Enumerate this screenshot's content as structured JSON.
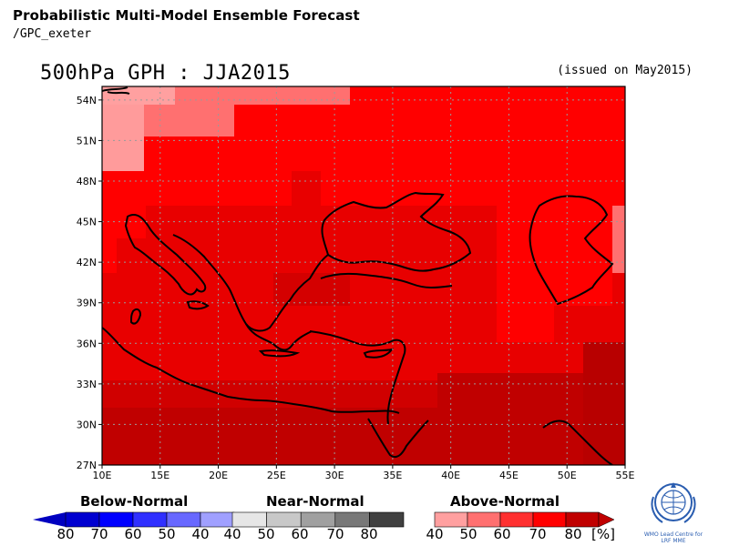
{
  "header": {
    "title": "Probabilistic Multi-Model Ensemble Forecast",
    "subtitle": "/GPC_exeter"
  },
  "map": {
    "title": "500hPa GPH : JJA2015",
    "issued": "(issued on May2015)",
    "lat_range": [
      27,
      55
    ],
    "lon_range": [
      10,
      55
    ],
    "lat_ticks": [
      "54N",
      "51N",
      "48N",
      "45N",
      "42N",
      "39N",
      "36N",
      "33N",
      "30N",
      "27N"
    ],
    "lon_ticks": [
      "10E",
      "15E",
      "20E",
      "25E",
      "30E",
      "35E",
      "40E",
      "45E",
      "50E",
      "55E"
    ],
    "grid": "dotted",
    "colors": {
      "above_40": "#ffa0a0",
      "above_50": "#ff7070",
      "above_60": "#ff3030",
      "above_70": "#ff0000",
      "above_80": "#c00000",
      "coastline": "#000000"
    }
  },
  "legend": {
    "below": {
      "label": "Below-Normal",
      "ticks": [
        "80",
        "70",
        "60",
        "50",
        "40"
      ],
      "colors": [
        "#0000d0",
        "#0000ff",
        "#3030ff",
        "#6868ff",
        "#a0a0ff"
      ]
    },
    "near": {
      "label": "Near-Normal",
      "ticks": [
        "40",
        "50",
        "60",
        "70",
        "80"
      ],
      "colors": [
        "#e6e6e6",
        "#c8c8c8",
        "#a0a0a0",
        "#787878",
        "#404040"
      ]
    },
    "above": {
      "label": "Above-Normal",
      "ticks": [
        "40",
        "50",
        "60",
        "70",
        "80"
      ],
      "colors": [
        "#ffa0a0",
        "#ff7070",
        "#ff3030",
        "#ff0000",
        "#c00000"
      ],
      "unit": "[%]"
    }
  },
  "logo": {
    "icon": "wmo-emblem-icon",
    "text_line1": "WMO Lead Centre for",
    "text_line2": "LRF MME"
  }
}
